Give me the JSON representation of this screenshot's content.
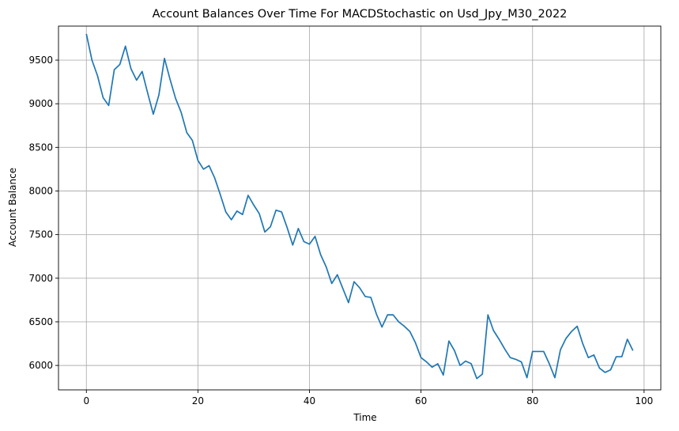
{
  "chart_data": {
    "type": "line",
    "title": "Account Balances Over Time For MACDStochastic on Usd_Jpy_M30_2022",
    "xlabel": "Time",
    "ylabel": "Account Balance",
    "xlim": [
      -5,
      103
    ],
    "ylim": [
      5720,
      9890
    ],
    "x_ticks": [
      0,
      20,
      40,
      60,
      80,
      100
    ],
    "y_ticks": [
      6000,
      6500,
      7000,
      7500,
      8000,
      8500,
      9000,
      9500
    ],
    "grid": true,
    "color": "#1f77b4",
    "series": [
      {
        "values": [
          9800,
          9500,
          9320,
          9070,
          8980,
          9390,
          9450,
          9660,
          9400,
          9270,
          9370,
          9120,
          8880,
          9100,
          9520,
          9280,
          9060,
          8900,
          8670,
          8580,
          8350,
          8250,
          8290,
          8150,
          7960,
          7760,
          7670,
          7770,
          7730,
          7950,
          7840,
          7740,
          7530,
          7590,
          7780,
          7760,
          7580,
          7380,
          7570,
          7420,
          7390,
          7480,
          7270,
          7130,
          6940,
          7040,
          6880,
          6720,
          6960,
          6890,
          6790,
          6780,
          6590,
          6440,
          6580,
          6580,
          6500,
          6450,
          6390,
          6260,
          6090,
          6040,
          5980,
          6020,
          5890,
          6280,
          6170,
          6000,
          6050,
          6020,
          5850,
          5900,
          6580,
          6400,
          6300,
          6190,
          6090,
          6070,
          6040,
          5860,
          6160,
          6160,
          6160,
          6020,
          5860,
          6180,
          6310,
          6390,
          6450,
          6250,
          6090,
          6120,
          5970,
          5920,
          5950,
          6100,
          6100,
          6300,
          6170
        ]
      }
    ]
  }
}
